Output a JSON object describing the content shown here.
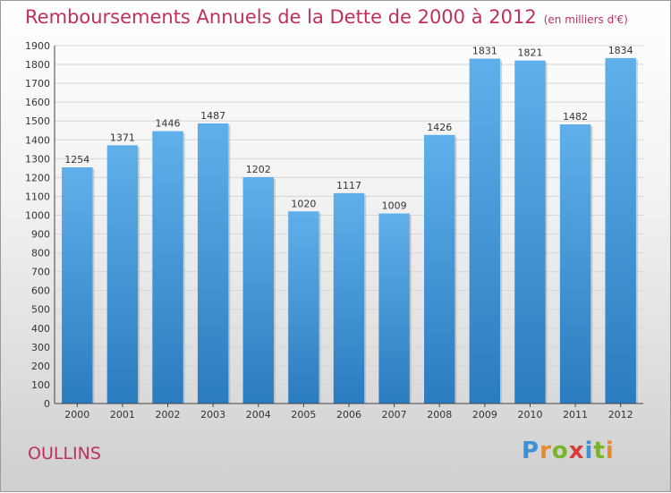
{
  "header": {
    "title": "Remboursements Annuels de la Dette de 2000 à 2012",
    "unit": "(en milliers d'€)"
  },
  "footer": {
    "city": "OULLINS",
    "logo": [
      "P",
      "r",
      "o",
      "x",
      "i",
      "t",
      "i"
    ]
  },
  "colors": {
    "title": "#c0305c",
    "bar_top": "#5fb0ea",
    "bar_bottom": "#2a7cc0",
    "logo": [
      "#3d8fd6",
      "#e8892a",
      "#79b42c",
      "#d93a3a",
      "#3d8fd6",
      "#79b42c",
      "#e8892a"
    ]
  },
  "chart_data": {
    "type": "bar",
    "categories": [
      "2000",
      "2001",
      "2002",
      "2003",
      "2004",
      "2005",
      "2006",
      "2007",
      "2008",
      "2009",
      "2010",
      "2011",
      "2012"
    ],
    "values": [
      1254,
      1371,
      1446,
      1487,
      1202,
      1020,
      1117,
      1009,
      1426,
      1831,
      1821,
      1482,
      1834
    ],
    "yticks": [
      0,
      100,
      200,
      300,
      400,
      500,
      600,
      700,
      800,
      900,
      1000,
      1100,
      1200,
      1300,
      1400,
      1500,
      1600,
      1700,
      1800,
      1900
    ],
    "ylim": [
      0,
      1900
    ],
    "grid": true,
    "title": "Remboursements Annuels de la Dette de 2000 à 2012",
    "xlabel": "",
    "ylabel": ""
  }
}
